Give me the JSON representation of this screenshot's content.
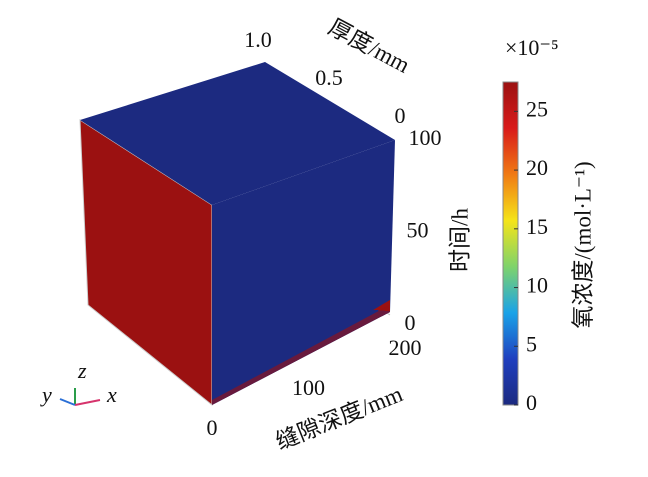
{
  "chart_data": {
    "type": "volume3d",
    "colormap": [
      "#1c2a80",
      "#1f3fbf",
      "#1aa3e8",
      "#7fd36b",
      "#f5e419",
      "#f07a14",
      "#d91a1a",
      "#9b1111"
    ],
    "face_colors": {
      "left": "#9b1111",
      "top": "#1c2a80",
      "right": "#1c2a80"
    },
    "thickness_axis": {
      "label": "厚度/mm",
      "lim": [
        1,
        0
      ],
      "ticks": [
        {
          "value": 1,
          "label": "1.0"
        },
        0.5,
        0
      ]
    },
    "time_axis": {
      "label": "时间/h",
      "lim": [
        0,
        100
      ],
      "ticks": [
        100,
        50,
        0
      ]
    },
    "depth_axis": {
      "label": "缝隙深度/mm",
      "lim": [
        0,
        200
      ],
      "ticks": [
        200,
        100,
        0
      ]
    },
    "colorbar": {
      "multiplier": "×10⁻⁵",
      "label": "氧浓度/(mol·L⁻¹)",
      "lim": [
        0,
        27.5
      ],
      "ticks": [
        25,
        20,
        15,
        10,
        5,
        0
      ]
    },
    "orientation_labels": {
      "y": "y",
      "z": "z",
      "x": "x"
    }
  }
}
